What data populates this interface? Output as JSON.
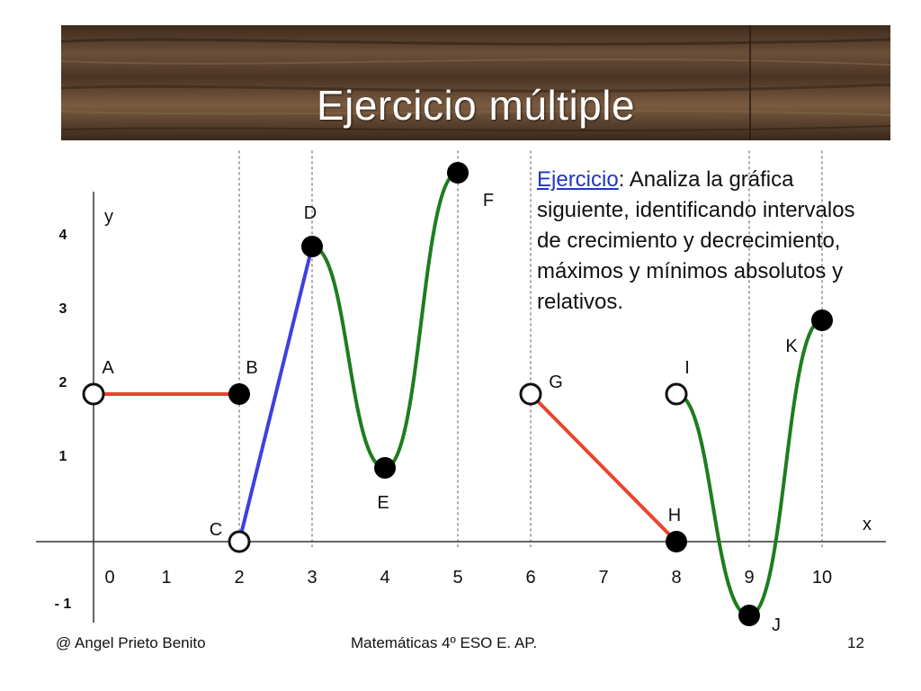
{
  "slide": {
    "title": "Ejercicio múltiple",
    "exercise_keyword": "Ejercicio",
    "exercise_text": ": Analiza la gráfica siguiente, identificando intervalos de crecimiento y decrecimiento, máximos y mínimos absolutos y relativos.",
    "accent_color": "#1f36c8"
  },
  "footer": {
    "author": "@ Angel Prieto Benito",
    "course": "Matemáticas 4º ESO E. AP.",
    "page": "12"
  },
  "chart_data": {
    "type": "line",
    "xlabel": "x",
    "ylabel": "y",
    "xticks": [
      "0",
      "1",
      "2",
      "3",
      "4",
      "5",
      "6",
      "7",
      "8",
      "9",
      "10"
    ],
    "yticks": [
      "- 1",
      "1",
      "2",
      "3",
      "4"
    ],
    "grid": false,
    "points": [
      {
        "label": "A",
        "x": 0,
        "y": 2,
        "open": true
      },
      {
        "label": "B",
        "x": 2,
        "y": 2,
        "open": false
      },
      {
        "label": "C",
        "x": 2,
        "y": 0,
        "open": true
      },
      {
        "label": "D",
        "x": 3,
        "y": 4,
        "open": false
      },
      {
        "label": "E",
        "x": 4,
        "y": 1,
        "open": false
      },
      {
        "label": "F",
        "x": 5,
        "y": 5,
        "open": false
      },
      {
        "label": "G",
        "x": 6,
        "y": 2,
        "open": true
      },
      {
        "label": "H",
        "x": 8,
        "y": 0,
        "open": false
      },
      {
        "label": "I",
        "x": 8,
        "y": 2,
        "open": true
      },
      {
        "label": "J",
        "x": 9,
        "y": -1,
        "open": false
      },
      {
        "label": "K",
        "x": 10,
        "y": 3,
        "open": false
      }
    ],
    "series": [
      {
        "from": "A",
        "to": "B",
        "shape": "line",
        "color": "#e8452c"
      },
      {
        "from": "C",
        "to": "D",
        "shape": "line",
        "color": "#3f3fe0"
      },
      {
        "from": "D",
        "to": "F",
        "shape": "curve",
        "color": "#1e7d1e"
      },
      {
        "from": "G",
        "to": "H",
        "shape": "line",
        "color": "#e8452c"
      },
      {
        "from": "I",
        "to": "K",
        "shape": "curve",
        "color": "#1e7d1e"
      }
    ],
    "dashed_guides_at_x": [
      2,
      3,
      5,
      6,
      9,
      10
    ]
  }
}
